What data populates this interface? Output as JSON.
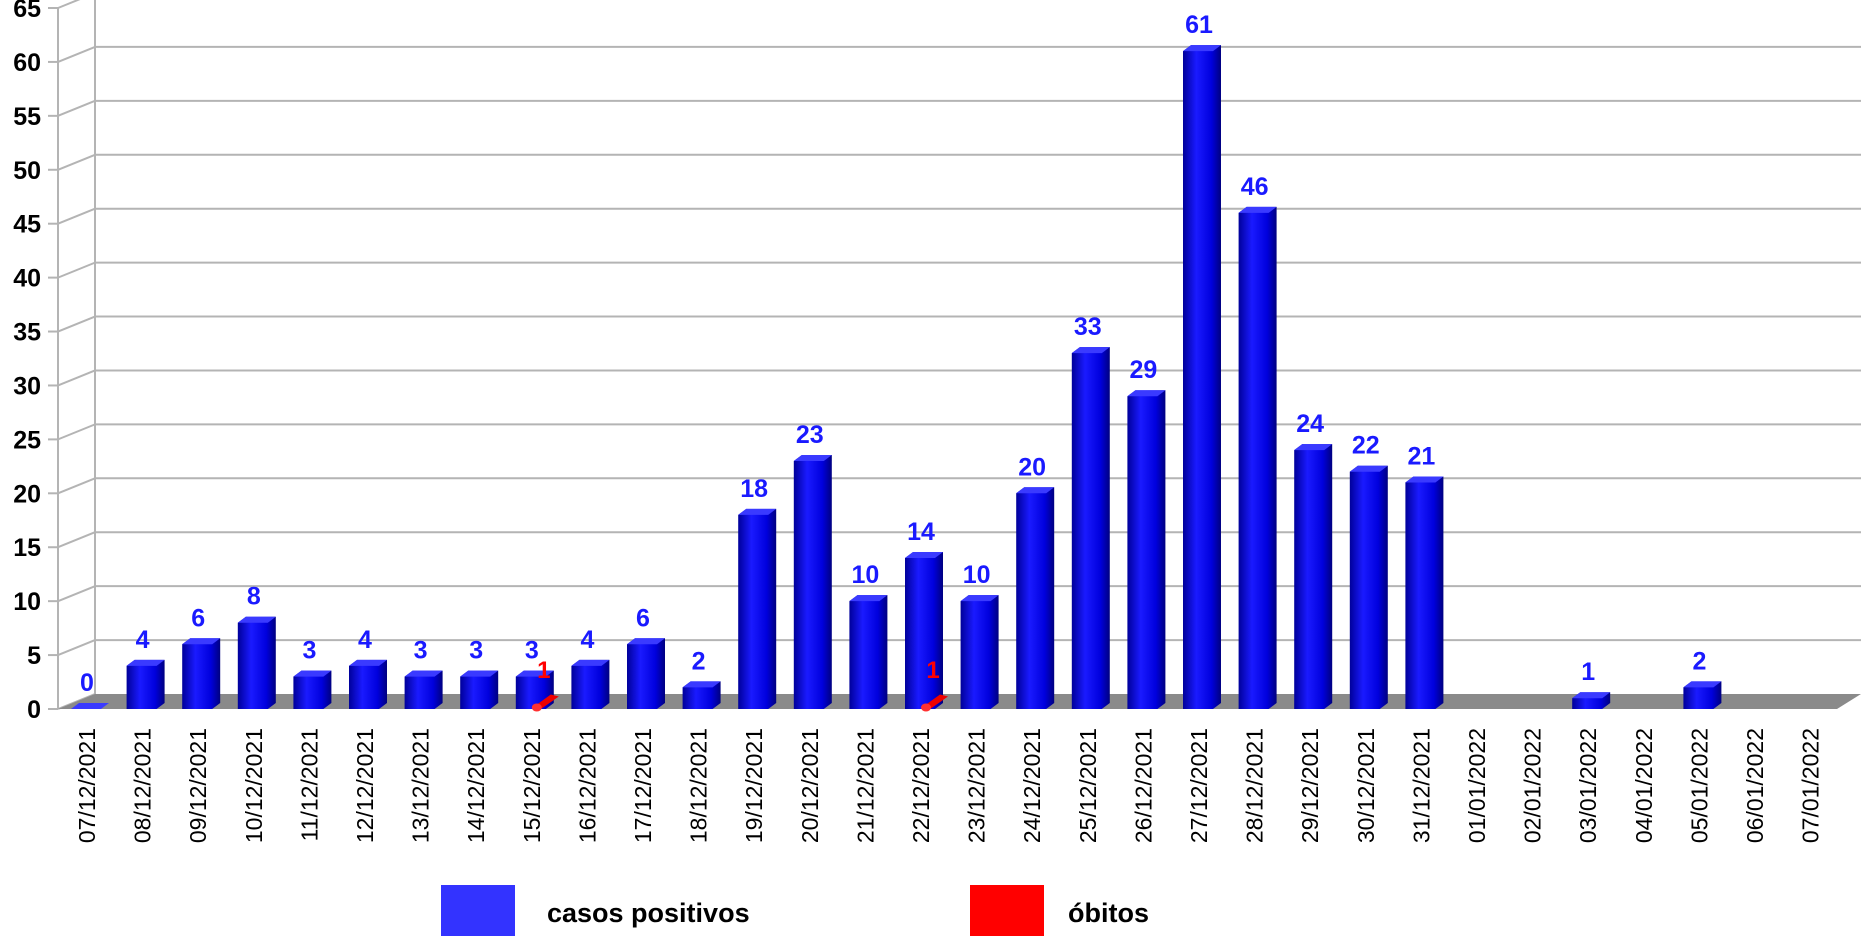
{
  "chart_data": {
    "type": "bar",
    "title": "",
    "xlabel": "",
    "ylabel": "",
    "ylim": [
      0,
      65
    ],
    "yticks": [
      0,
      5,
      10,
      15,
      20,
      25,
      30,
      35,
      40,
      45,
      50,
      55,
      60,
      65
    ],
    "grid": true,
    "legend_position": "bottom",
    "three_d": true,
    "categories": [
      "07/12/2021",
      "08/12/2021",
      "09/12/2021",
      "10/12/2021",
      "11/12/2021",
      "12/12/2021",
      "13/12/2021",
      "14/12/2021",
      "15/12/2021",
      "16/12/2021",
      "17/12/2021",
      "18/12/2021",
      "19/12/2021",
      "20/12/2021",
      "21/12/2021",
      "22/12/2021",
      "23/12/2021",
      "24/12/2021",
      "25/12/2021",
      "26/12/2021",
      "27/12/2021",
      "28/12/2021",
      "29/12/2021",
      "30/12/2021",
      "31/12/2021",
      "01/01/2022",
      "02/01/2022",
      "03/01/2022",
      "04/01/2022",
      "05/01/2022",
      "06/01/2022",
      "07/01/2022"
    ],
    "series": [
      {
        "name": "casos positivos",
        "color": "#0000ee",
        "legend_color": "#3333ff",
        "label_color": "#1a1aff",
        "values": [
          0,
          4,
          6,
          8,
          3,
          4,
          3,
          3,
          3,
          4,
          6,
          2,
          18,
          23,
          10,
          14,
          10,
          20,
          33,
          29,
          61,
          46,
          24,
          22,
          21,
          null,
          null,
          1,
          null,
          2,
          null,
          null
        ]
      },
      {
        "name": "óbitos",
        "color": "#ee0000",
        "legend_color": "#ff0000",
        "label_color": "#ff0000",
        "values": [
          null,
          null,
          null,
          null,
          null,
          null,
          null,
          null,
          1,
          null,
          null,
          null,
          null,
          null,
          null,
          1,
          null,
          null,
          null,
          null,
          null,
          null,
          null,
          null,
          null,
          null,
          null,
          null,
          null,
          null,
          null,
          null
        ]
      }
    ]
  }
}
